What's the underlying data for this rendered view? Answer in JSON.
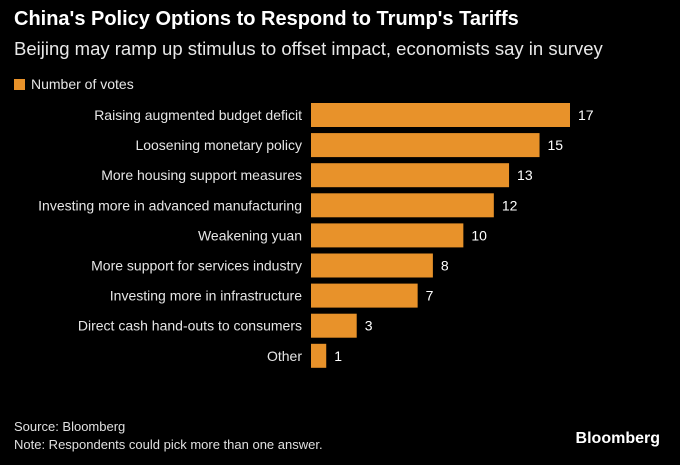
{
  "title": "China's Policy Options to Respond to Trump's Tariffs",
  "subtitle": "Beijing may ramp up stimulus to offset impact, economists say in survey",
  "legend": {
    "label": "Number of votes",
    "color": "#e8922a"
  },
  "footer": {
    "source": "Source: Bloomberg",
    "note": "Note: Respondents could pick more than one answer."
  },
  "brand": "Bloomberg",
  "chart_data": {
    "type": "bar",
    "orientation": "horizontal",
    "categories": [
      "Raising augmented budget deficit",
      "Loosening monetary policy",
      "More housing support measures",
      "Investing more in advanced manufacturing",
      "Weakening yuan",
      "More support for services industry",
      "Investing more in infrastructure",
      "Direct cash hand-outs to consumers",
      "Other"
    ],
    "series": [
      {
        "name": "Number of votes",
        "values": [
          17,
          15,
          13,
          12,
          10,
          8,
          7,
          3,
          1
        ]
      }
    ],
    "title": "China's Policy Options to Respond to Trump's Tariffs",
    "subtitle": "Beijing may ramp up stimulus to offset impact, economists say in survey",
    "xlim": [
      0,
      17
    ],
    "data_labels": true,
    "grid": false,
    "legend_position": "top-left",
    "bar_color": "#e8922a"
  }
}
